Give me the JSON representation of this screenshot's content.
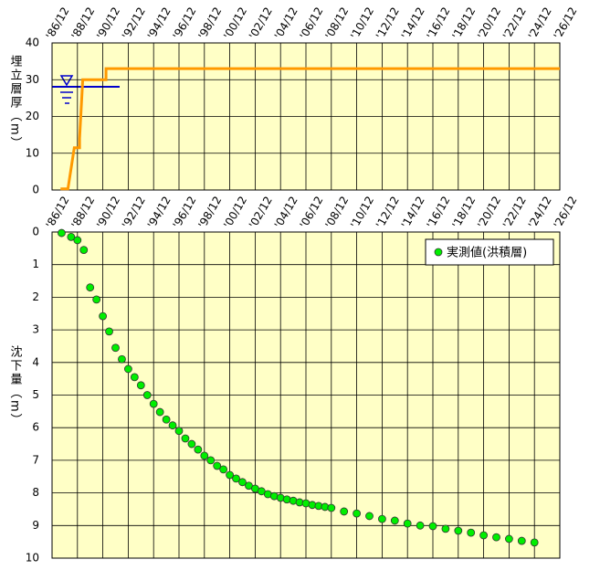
{
  "chart_data": [
    {
      "type": "line",
      "y_label": "埋立層厚（m）",
      "x": [
        "1987-08",
        "1988-03",
        "1988-09",
        "1989-02",
        "1989-02",
        "1989-05",
        "1991-03",
        "1991-03",
        "2026-12"
      ],
      "values": [
        0.3,
        0.3,
        11.5,
        11.5,
        14,
        30,
        30,
        33,
        33
      ],
      "color": "#ff9900",
      "xlim": [
        "1986-12",
        "2026-12"
      ],
      "xticks": [
        {
          "value": "1986-12",
          "label": "'86/12"
        },
        {
          "value": "1988-12",
          "label": "'88/12"
        },
        {
          "value": "1990-12",
          "label": "'90/12"
        },
        {
          "value": "1992-12",
          "label": "'92/12"
        },
        {
          "value": "1994-12",
          "label": "'94/12"
        },
        {
          "value": "1996-12",
          "label": "'96/12"
        },
        {
          "value": "1998-12",
          "label": "'98/12"
        },
        {
          "value": "2000-12",
          "label": "'00/12"
        },
        {
          "value": "2002-12",
          "label": "'02/12"
        },
        {
          "value": "2004-12",
          "label": "'04/12"
        },
        {
          "value": "2006-12",
          "label": "'06/12"
        },
        {
          "value": "2008-12",
          "label": "'08/12"
        },
        {
          "value": "2010-12",
          "label": "'10/12"
        },
        {
          "value": "2012-12",
          "label": "'12/12"
        },
        {
          "value": "2014-12",
          "label": "'14/12"
        },
        {
          "value": "2016-12",
          "label": "'16/12"
        },
        {
          "value": "2018-12",
          "label": "'18/12"
        },
        {
          "value": "2020-12",
          "label": "'20/12"
        },
        {
          "value": "2022-12",
          "label": "'22/12"
        },
        {
          "value": "2024-12",
          "label": "'24/12"
        },
        {
          "value": "2026-12",
          "label": "'26/12"
        }
      ],
      "ylim": [
        0,
        40
      ],
      "yticks": [
        0,
        10,
        20,
        30,
        40
      ],
      "grid": true
    },
    {
      "type": "scatter",
      "y_label": "沈下量（m）",
      "y_inverted": true,
      "legend": "upper right",
      "series": [
        {
          "name": "実測値(洪積層)",
          "color": "#00ee00",
          "x": [
            "1987-09",
            "1988-06",
            "1988-12",
            "1989-06",
            "1989-12",
            "1990-06",
            "1990-12",
            "1991-06",
            "1991-12",
            "1992-06",
            "1992-12",
            "1993-06",
            "1993-12",
            "1994-06",
            "1994-12",
            "1995-06",
            "1995-12",
            "1996-06",
            "1996-12",
            "1997-06",
            "1997-12",
            "1998-06",
            "1998-12",
            "1999-06",
            "1999-12",
            "2000-06",
            "2000-12",
            "2001-06",
            "2001-12",
            "2002-06",
            "2002-12",
            "2003-06",
            "2003-12",
            "2004-06",
            "2004-12",
            "2005-06",
            "2005-12",
            "2006-06",
            "2006-12",
            "2007-06",
            "2007-12",
            "2008-06",
            "2008-12",
            "2009-12",
            "2010-12",
            "2011-12",
            "2012-12",
            "2013-12",
            "2014-12",
            "2015-12",
            "2016-12",
            "2017-12",
            "2018-12",
            "2019-12",
            "2020-12",
            "2021-12",
            "2022-12",
            "2023-12",
            "2024-12"
          ],
          "values": [
            0.03,
            0.15,
            0.25,
            0.55,
            1.7,
            2.07,
            2.58,
            3.05,
            3.55,
            3.9,
            4.2,
            4.45,
            4.7,
            5.0,
            5.27,
            5.52,
            5.75,
            5.93,
            6.1,
            6.33,
            6.5,
            6.67,
            6.86,
            7.0,
            7.17,
            7.28,
            7.45,
            7.56,
            7.67,
            7.78,
            7.87,
            7.95,
            8.04,
            8.1,
            8.15,
            8.2,
            8.24,
            8.29,
            8.32,
            8.37,
            8.4,
            8.43,
            8.46,
            8.57,
            8.63,
            8.71,
            8.8,
            8.85,
            8.94,
            9.0,
            9.02,
            9.1,
            9.16,
            9.22,
            9.3,
            9.36,
            9.41,
            9.47,
            9.52
          ]
        }
      ],
      "xlim": [
        "1986-12",
        "2026-12"
      ],
      "xticks": [
        {
          "value": "1986-12",
          "label": "'86/12"
        },
        {
          "value": "1988-12",
          "label": "'88/12"
        },
        {
          "value": "1990-12",
          "label": "'90/12"
        },
        {
          "value": "1992-12",
          "label": "'92/12"
        },
        {
          "value": "1994-12",
          "label": "'94/12"
        },
        {
          "value": "1996-12",
          "label": "'96/12"
        },
        {
          "value": "1998-12",
          "label": "'98/12"
        },
        {
          "value": "2000-12",
          "label": "'00/12"
        },
        {
          "value": "2002-12",
          "label": "'02/12"
        },
        {
          "value": "2004-12",
          "label": "'04/12"
        },
        {
          "value": "2006-12",
          "label": "'06/12"
        },
        {
          "value": "2008-12",
          "label": "'08/12"
        },
        {
          "value": "2010-12",
          "label": "'10/12"
        },
        {
          "value": "2012-12",
          "label": "'12/12"
        },
        {
          "value": "2014-12",
          "label": "'14/12"
        },
        {
          "value": "2016-12",
          "label": "'16/12"
        },
        {
          "value": "2018-12",
          "label": "'18/12"
        },
        {
          "value": "2020-12",
          "label": "'20/12"
        },
        {
          "value": "2022-12",
          "label": "'22/12"
        },
        {
          "value": "2024-12",
          "label": "'24/12"
        },
        {
          "value": "2026-12",
          "label": "'26/12"
        }
      ],
      "ylim": [
        0,
        10
      ],
      "yticks": [
        0,
        1,
        2,
        3,
        4,
        5,
        6,
        7,
        8,
        9,
        10
      ],
      "grid": true
    }
  ]
}
